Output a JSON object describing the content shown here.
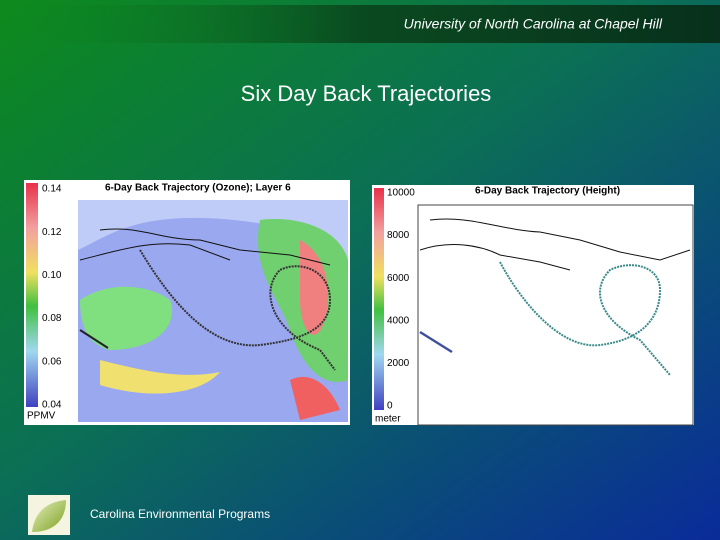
{
  "header": {
    "institution": "University of North Carolina at Chapel Hill"
  },
  "title": "Six Day Back Trajectories",
  "panels": [
    {
      "title": "6-Day Back Trajectory (Ozone); Layer 6",
      "scale": [
        "0.14",
        "0.12",
        "0.10",
        "0.08",
        "0.06",
        "0.04"
      ],
      "unit": "PPMV"
    },
    {
      "title": "6-Day Back Trajectory (Height)",
      "scale": [
        "10000",
        "8000",
        "6000",
        "4000",
        "2000",
        "0"
      ],
      "unit": "meter"
    }
  ],
  "footer": "Carolina Environmental Programs"
}
